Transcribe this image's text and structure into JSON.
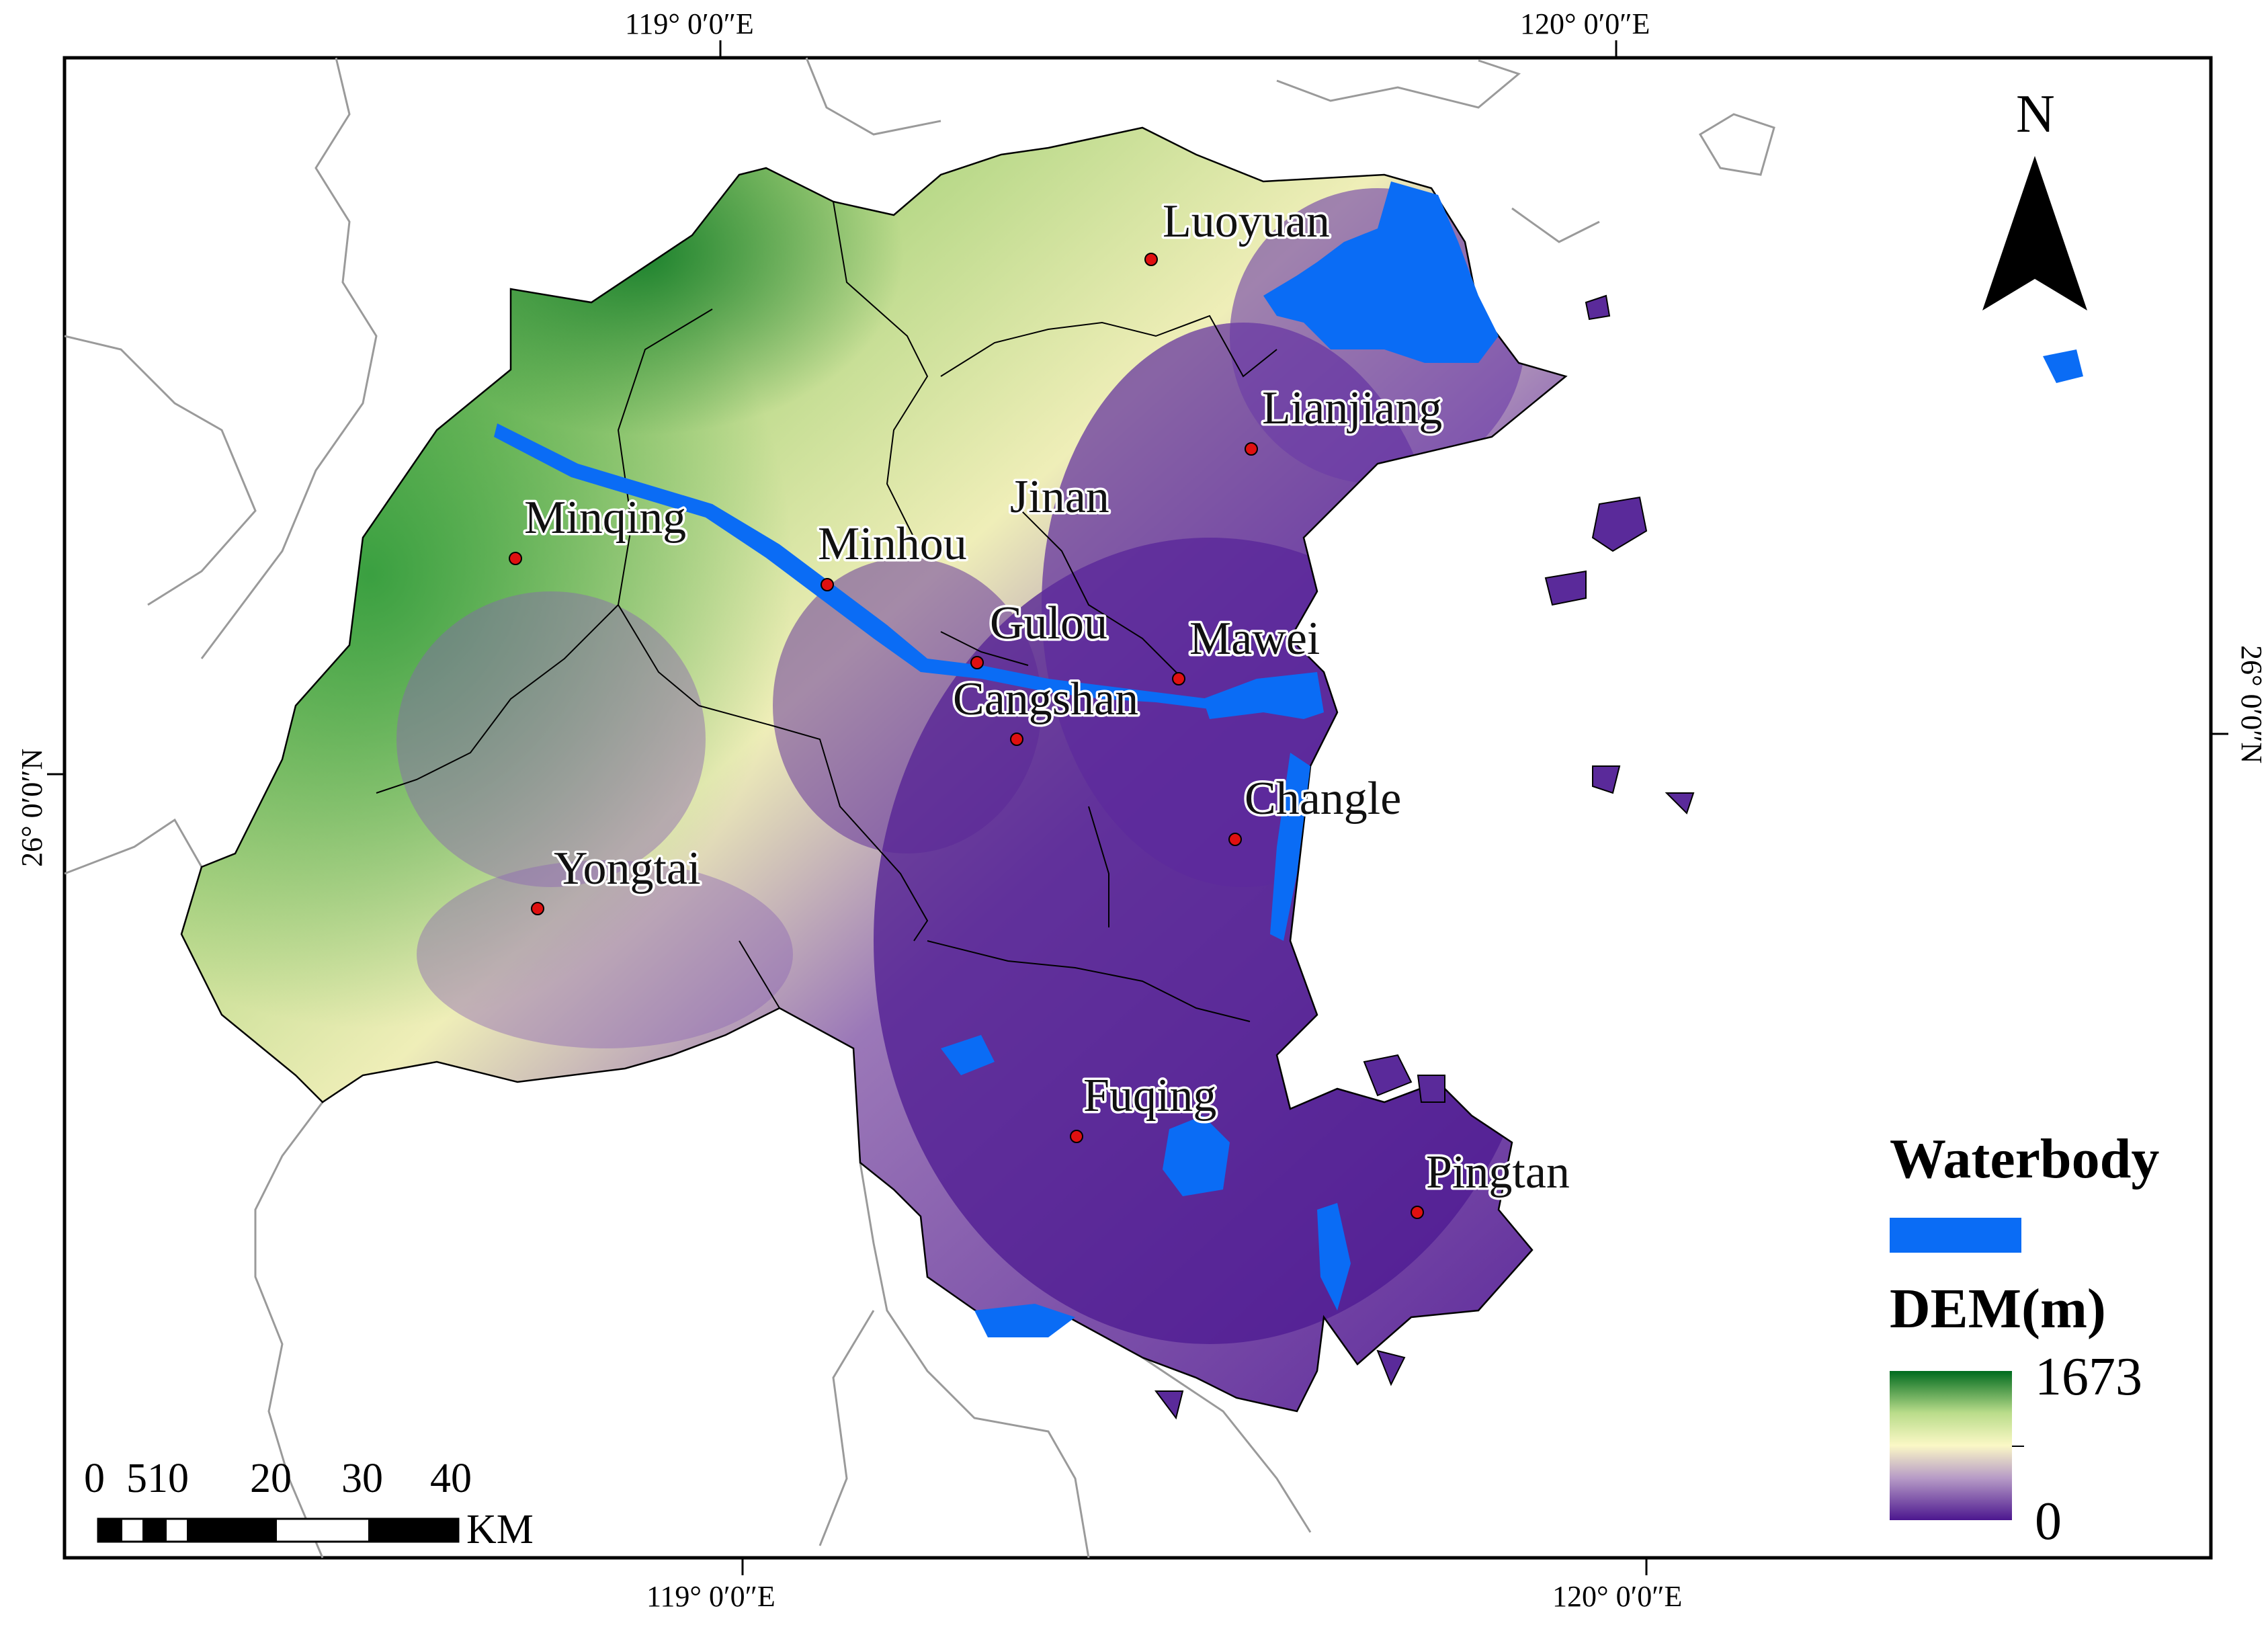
{
  "map": {
    "top_ticks": [
      "119° 0′0″E",
      "120° 0′0″E"
    ],
    "bottom_ticks": [
      "119° 0′0″E",
      "120° 0′0″E"
    ],
    "left_tick": "26° 0′0″N",
    "right_tick": "26° 0′0″N",
    "north_label": "N",
    "cities": [
      {
        "name": "Luoyuan"
      },
      {
        "name": "Lianjiang"
      },
      {
        "name": "Jinan"
      },
      {
        "name": "Minqing"
      },
      {
        "name": "Minhou"
      },
      {
        "name": "Gulou"
      },
      {
        "name": "Mawei"
      },
      {
        "name": "Cangshan"
      },
      {
        "name": "Changle"
      },
      {
        "name": "Yongtai"
      },
      {
        "name": "Fuqing"
      },
      {
        "name": "Pingtan"
      }
    ],
    "legend": {
      "waterbody_label": "Waterbody",
      "waterbody_color": "#0a6cf5",
      "dem_label": "DEM(m)",
      "dem_max": "1673",
      "dem_min": "0",
      "ramp_colors": [
        "#006b1e",
        "#b9dc8a",
        "#fbf8c6",
        "#b69ac6",
        "#4c178f"
      ]
    },
    "scalebar": {
      "labels": [
        "0",
        "510",
        "20",
        "30",
        "40"
      ],
      "unit": "KM"
    }
  }
}
